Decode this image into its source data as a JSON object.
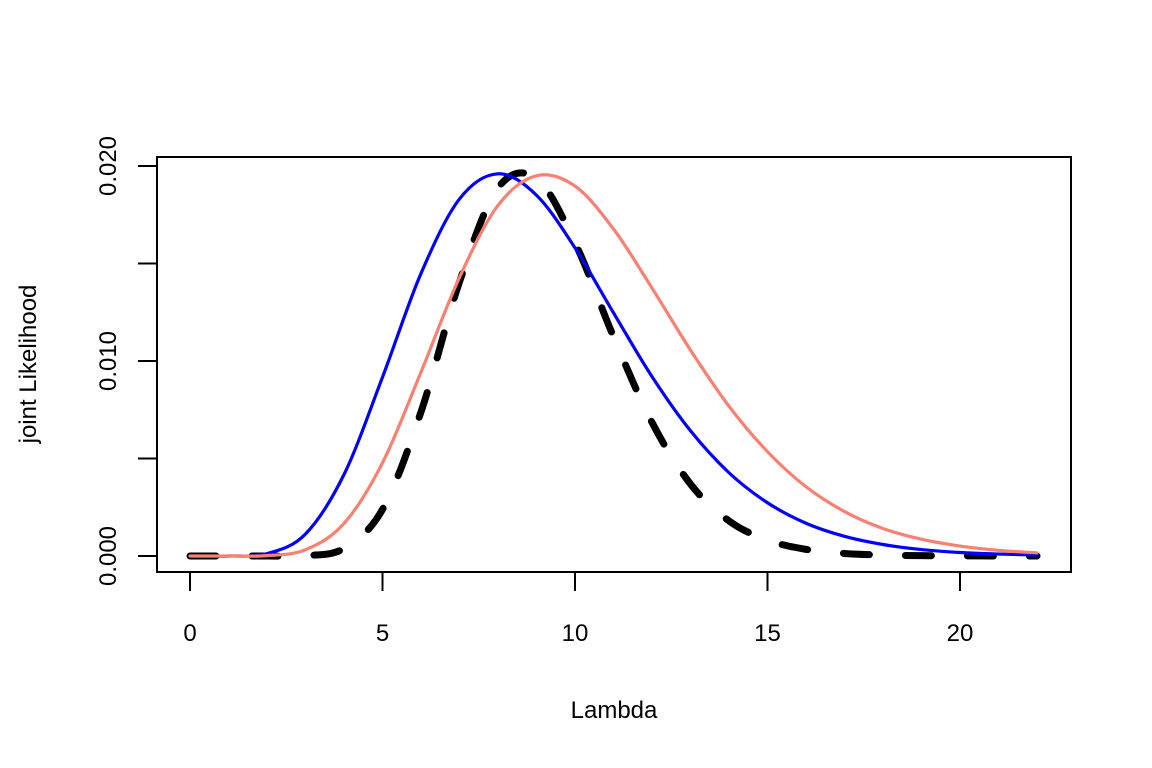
{
  "chart_data": {
    "type": "line",
    "title": "",
    "xlabel": "Lambda",
    "ylabel": "joint Likelihood",
    "xlim": [
      0,
      22
    ],
    "ylim": [
      0,
      0.0196
    ],
    "x_ticks": [
      0,
      5,
      10,
      15,
      20
    ],
    "x_tick_labels": [
      "0",
      "5",
      "10",
      "15",
      "20"
    ],
    "y_ticks": [
      0,
      0.005,
      0.01,
      0.015,
      0.02
    ],
    "y_tick_labels": [
      "0.000",
      "",
      "0.010",
      "",
      "0.020"
    ],
    "grid": false,
    "legend": null,
    "x": [
      0,
      1,
      2,
      3,
      4,
      5,
      6,
      7,
      8,
      9,
      10,
      11,
      12,
      13,
      14,
      15,
      16,
      17,
      18,
      19,
      20,
      21,
      22
    ],
    "series": [
      {
        "name": "blue curve",
        "color": "#0000FF",
        "style": "solid",
        "values": [
          0,
          1.3e-06,
          0.00012,
          0.00113,
          0.00418,
          0.00917,
          0.01449,
          0.01831,
          0.0196,
          0.0185,
          0.0158,
          0.01247,
          0.0092,
          0.00642,
          0.00427,
          0.00273,
          0.00168,
          0.00101,
          0.00059,
          0.00033,
          0.00018,
          0.0001,
          5e-05
        ]
      },
      {
        "name": "salmon curve",
        "color": "#FA8072",
        "style": "solid",
        "values": [
          0,
          0,
          2e-05,
          0.00032,
          0.00167,
          0.00478,
          0.00943,
          0.01429,
          0.01798,
          0.0195,
          0.01897,
          0.01677,
          0.01374,
          0.01056,
          0.00768,
          0.00535,
          0.00355,
          0.00228,
          0.00141,
          0.00086,
          0.00051,
          0.00029,
          0.00016
        ]
      },
      {
        "name": "black dashed curve",
        "color": "#000000",
        "style": "dashed",
        "values": [
          0,
          0,
          0,
          2e-05,
          0.00039,
          0.00239,
          0.00739,
          0.01406,
          0.01888,
          0.01936,
          0.01606,
          0.01125,
          0.00685,
          0.00369,
          0.0018,
          0.00081,
          0.00034,
          0.00013,
          5e-05,
          2e-05,
          1e-05,
          0,
          0
        ]
      }
    ]
  }
}
